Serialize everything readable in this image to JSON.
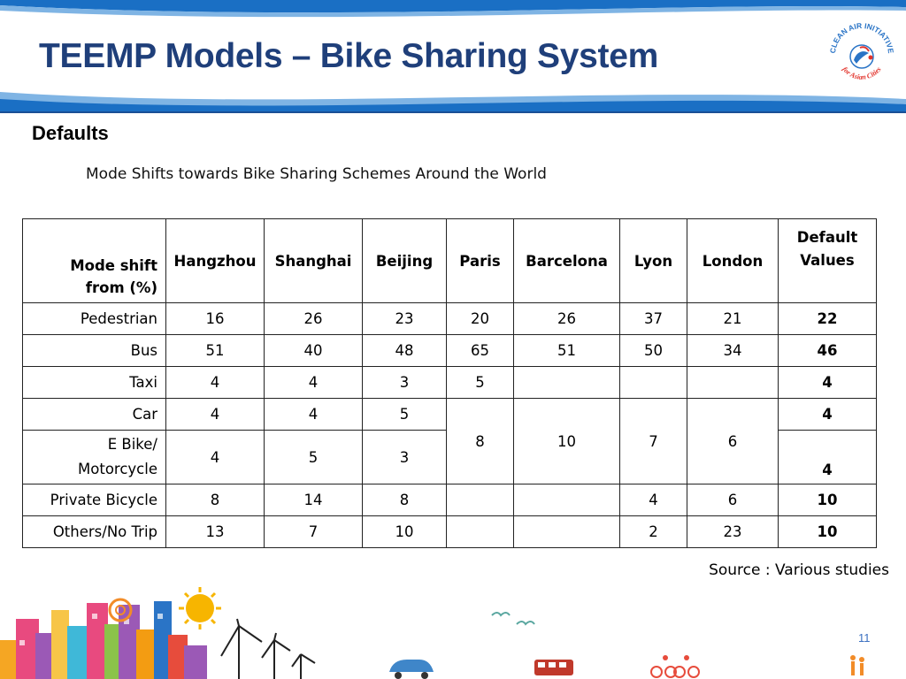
{
  "slide": {
    "title": "TEEMP Models – Bike Sharing System",
    "section_heading": "Defaults",
    "caption": "Mode Shifts towards Bike Sharing Schemes Around the World",
    "source": "Source : Various studies",
    "page_number": "11"
  },
  "logo": {
    "text_top": "CLEAN AIR INITIATIVE",
    "text_bottom": "for Asian Cities"
  },
  "table": {
    "header_first": [
      "Mode shift",
      "from (%)"
    ],
    "columns": [
      "Hangzhou",
      "Shanghai",
      "Beijing",
      "Paris",
      "Barcelona",
      "Lyon",
      "London"
    ],
    "header_default": [
      "Default",
      "Values"
    ],
    "rows": {
      "pedestrian": {
        "label": "Pedestrian",
        "values": [
          "16",
          "26",
          "23",
          "20",
          "26",
          "37",
          "21"
        ],
        "default": "22"
      },
      "bus": {
        "label": "Bus",
        "values": [
          "51",
          "40",
          "48",
          "65",
          "51",
          "50",
          "34"
        ],
        "default": "46"
      },
      "taxi": {
        "label": "Taxi",
        "values": [
          "4",
          "4",
          "3",
          "5",
          "",
          "",
          ""
        ],
        "default": "4"
      },
      "car": {
        "label": "Car",
        "values": [
          "4",
          "4",
          "5"
        ],
        "default": "4"
      },
      "ebike": {
        "label": [
          "E Bike/",
          "Motorcycle"
        ],
        "values": [
          "4",
          "5",
          "3"
        ],
        "default": "4"
      },
      "car_ebike_merged": {
        "paris": "8",
        "barcelona": "10",
        "lyon": "7",
        "london": "6"
      },
      "private_bicycle": {
        "label": "Private Bicycle",
        "values": [
          "8",
          "14",
          "8",
          "",
          "",
          "4",
          "6"
        ],
        "default": "10"
      },
      "others": {
        "label": "Others/No Trip",
        "values": [
          "13",
          "7",
          "10",
          "",
          "",
          "2",
          "23"
        ],
        "default": "10"
      }
    }
  },
  "colors": {
    "title": "#1f3f7a",
    "header_band": "#1a6fc4",
    "header_band_light": "#6aa6dc",
    "logo_accent": "#e2332b",
    "logo_blue": "#2a74c6",
    "page_number": "#3a6fc0"
  }
}
